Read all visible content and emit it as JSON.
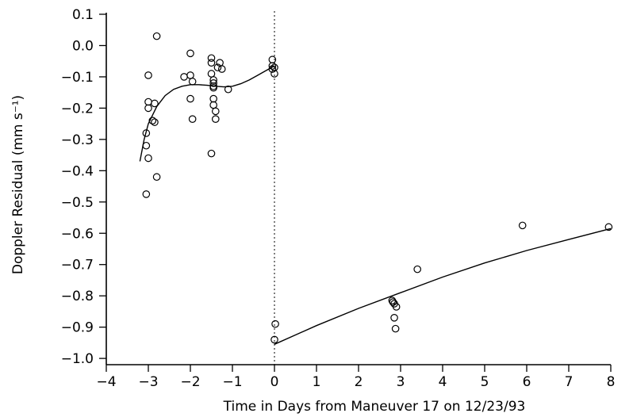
{
  "chart_data": {
    "type": "scatter",
    "xlabel": "Time in Days from Maneuver 17 on 12/23/93",
    "ylabel": "Doppler Residual (mm s⁻¹)",
    "xlim": [
      -4,
      8
    ],
    "ylim": [
      -1.05,
      0.1
    ],
    "x_ticks": [
      -4,
      -3,
      -2,
      -1,
      0,
      1,
      2,
      3,
      4,
      5,
      6,
      7,
      8
    ],
    "x_tick_labels": [
      "−4",
      "−3",
      "−2",
      "−1",
      "0",
      "1",
      "2",
      "3",
      "4",
      "5",
      "6",
      "7",
      "8"
    ],
    "y_ticks": [
      0.1,
      0.0,
      -0.1,
      -0.2,
      -0.3,
      -0.4,
      -0.5,
      -0.6,
      -0.7,
      -0.8,
      -0.9,
      -1.0
    ],
    "y_tick_labels": [
      "0.1",
      "0.0",
      "−0.1",
      "−0.2",
      "−0.3",
      "−0.4",
      "−0.5",
      "−0.6",
      "−0.7",
      "−0.8",
      "−0.9",
      "−1.0"
    ],
    "grid": false,
    "vertical_reference_line": {
      "x": 0,
      "style": "dotted"
    },
    "series": [
      {
        "marker": "open-circle",
        "points": [
          [
            -2.8,
            0.03
          ],
          [
            -3.0,
            -0.095
          ],
          [
            -3.0,
            -0.18
          ],
          [
            -3.0,
            -0.2
          ],
          [
            -2.85,
            -0.185
          ],
          [
            -2.9,
            -0.24
          ],
          [
            -2.85,
            -0.245
          ],
          [
            -3.05,
            -0.28
          ],
          [
            -3.05,
            -0.32
          ],
          [
            -3.0,
            -0.36
          ],
          [
            -2.8,
            -0.42
          ],
          [
            -3.05,
            -0.475
          ],
          [
            -2.0,
            -0.025
          ],
          [
            -2.15,
            -0.1
          ],
          [
            -2.0,
            -0.095
          ],
          [
            -1.95,
            -0.115
          ],
          [
            -2.0,
            -0.17
          ],
          [
            -1.95,
            -0.235
          ],
          [
            -1.5,
            -0.04
          ],
          [
            -1.5,
            -0.055
          ],
          [
            -1.3,
            -0.055
          ],
          [
            -1.35,
            -0.07
          ],
          [
            -1.25,
            -0.075
          ],
          [
            -1.5,
            -0.09
          ],
          [
            -1.45,
            -0.11
          ],
          [
            -1.45,
            -0.12
          ],
          [
            -1.45,
            -0.13
          ],
          [
            -1.45,
            -0.135
          ],
          [
            -1.1,
            -0.14
          ],
          [
            -1.45,
            -0.17
          ],
          [
            -1.45,
            -0.19
          ],
          [
            -1.4,
            -0.21
          ],
          [
            -1.4,
            -0.235
          ],
          [
            -1.5,
            -0.345
          ],
          [
            -0.05,
            -0.045
          ],
          [
            -0.05,
            -0.065
          ],
          [
            0.0,
            -0.07
          ],
          [
            -0.05,
            -0.075
          ],
          [
            0.0,
            -0.09
          ],
          [
            0.02,
            -0.89
          ],
          [
            0.0,
            -0.94
          ],
          [
            2.8,
            -0.815
          ],
          [
            2.82,
            -0.82
          ],
          [
            2.85,
            -0.825
          ],
          [
            2.9,
            -0.835
          ],
          [
            2.85,
            -0.87
          ],
          [
            2.88,
            -0.905
          ],
          [
            3.4,
            -0.715
          ],
          [
            5.9,
            -0.575
          ],
          [
            7.95,
            -0.58
          ]
        ]
      },
      {
        "type": "line",
        "segments": [
          [
            [
              -3.2,
              -0.37
            ],
            [
              -3.1,
              -0.3
            ],
            [
              -3.0,
              -0.25
            ],
            [
              -2.8,
              -0.195
            ],
            [
              -2.6,
              -0.16
            ],
            [
              -2.4,
              -0.14
            ],
            [
              -2.2,
              -0.13
            ],
            [
              -2.0,
              -0.125
            ],
            [
              -1.8,
              -0.125
            ],
            [
              -1.6,
              -0.127
            ],
            [
              -1.4,
              -0.13
            ],
            [
              -1.2,
              -0.132
            ],
            [
              -1.0,
              -0.13
            ],
            [
              -0.8,
              -0.122
            ],
            [
              -0.6,
              -0.11
            ],
            [
              -0.4,
              -0.095
            ],
            [
              -0.2,
              -0.08
            ],
            [
              0.0,
              -0.065
            ]
          ],
          [
            [
              0.0,
              -0.955
            ],
            [
              0.5,
              -0.925
            ],
            [
              1.0,
              -0.895
            ],
            [
              2.0,
              -0.84
            ],
            [
              3.0,
              -0.79
            ],
            [
              4.0,
              -0.74
            ],
            [
              5.0,
              -0.695
            ],
            [
              6.0,
              -0.655
            ],
            [
              7.0,
              -0.62
            ],
            [
              8.0,
              -0.585
            ]
          ]
        ]
      }
    ]
  }
}
